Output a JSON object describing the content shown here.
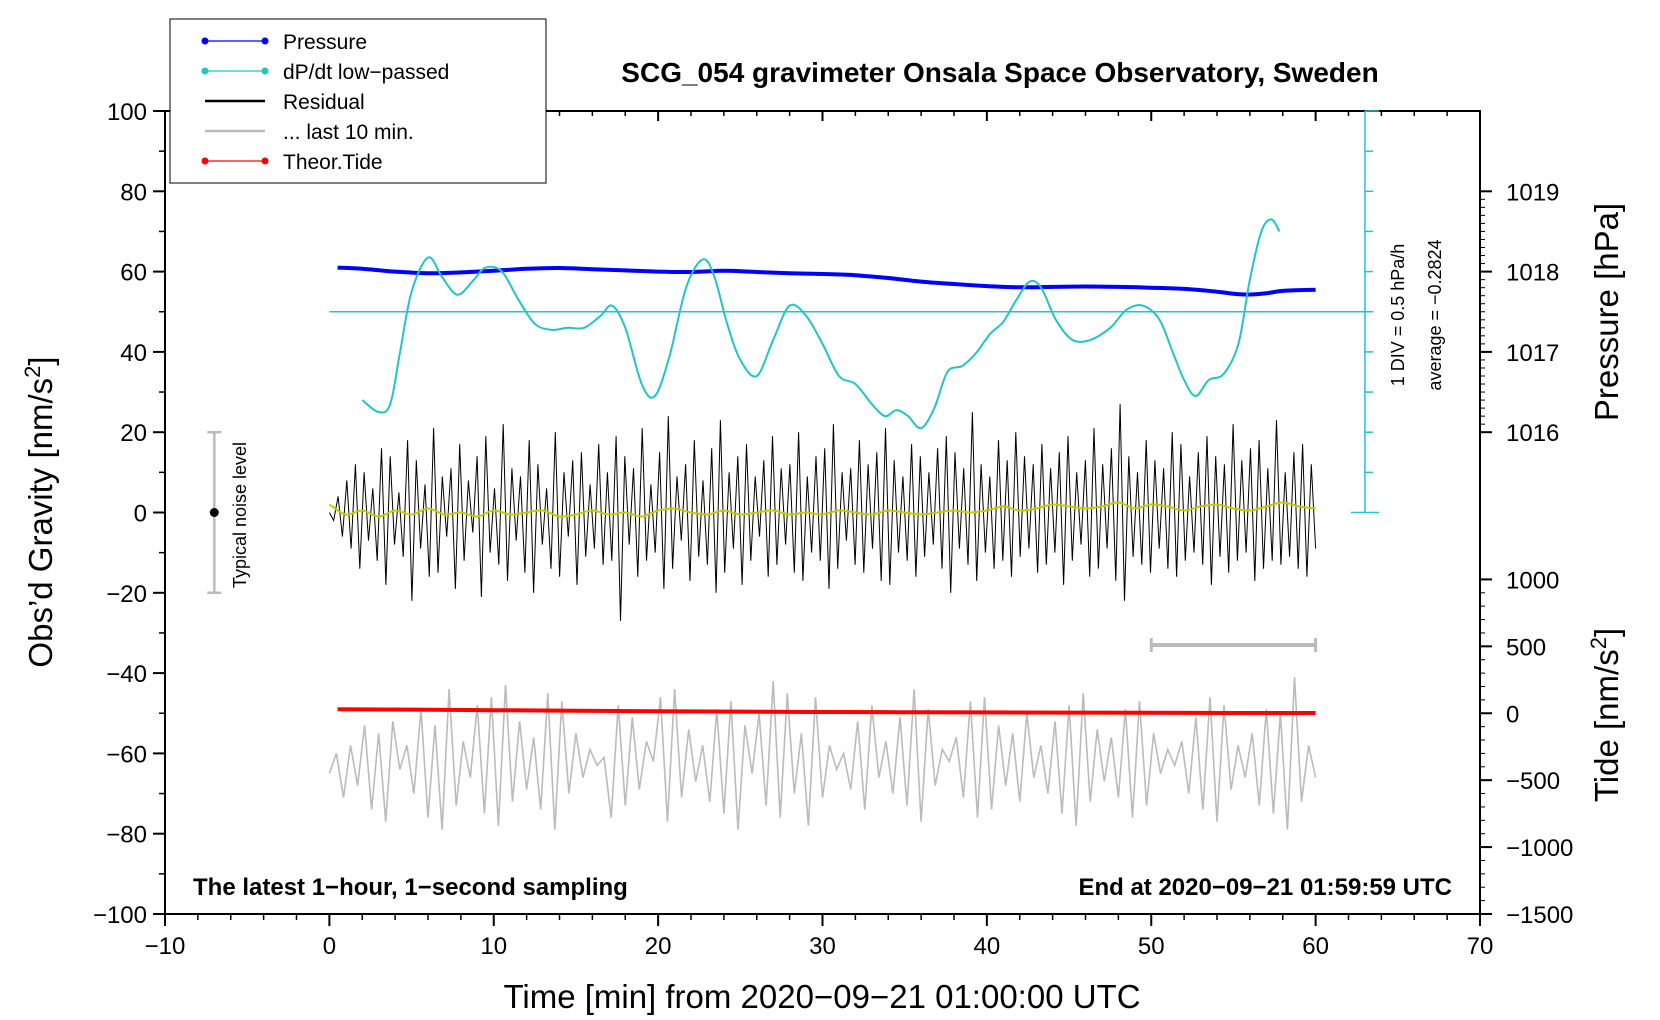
{
  "chart_data": {
    "type": "line",
    "title": "SCG_054 gravimeter Onsala Space Observatory, Sweden",
    "xlabel": "Time [min] from 2020−09−21 01:00:00 UTC",
    "ylabel_left": "Obs’d Gravity [nm/s",
    "ylabel_right_top": "Pressure [hPa]",
    "ylabel_right_bottom": "Tide [nm/s",
    "superscript_2": "2",
    "closing_bracket": "]",
    "xlim": [
      -10,
      70
    ],
    "ylim_left": [
      -100,
      100
    ],
    "x_ticks": [
      -10,
      0,
      10,
      20,
      30,
      40,
      50,
      60,
      70
    ],
    "x_tick_labels": [
      "−10",
      "0",
      "10",
      "20",
      "30",
      "40",
      "50",
      "60",
      "70"
    ],
    "y_ticks_left": [
      -100,
      -80,
      -60,
      -40,
      -20,
      0,
      20,
      40,
      60,
      80,
      100
    ],
    "y_tick_labels_left": [
      "−100",
      "−80",
      "−60",
      "−40",
      "−20",
      "0",
      "20",
      "40",
      "60",
      "80",
      "100"
    ],
    "pressure_axis": {
      "ticks": [
        1016,
        1017,
        1018,
        1019
      ],
      "labels": [
        "1016",
        "1017",
        "1018",
        "1019"
      ],
      "map": {
        "hpa_a": 1016,
        "left_a": 20,
        "hpa_b": 1019,
        "left_b": 80
      }
    },
    "tide_axis": {
      "ticks": [
        1000,
        500,
        0,
        -500,
        -1000,
        -1500
      ],
      "labels": [
        "1000",
        "500",
        "0",
        "−500",
        "−1000",
        "−1500"
      ],
      "map": {
        "tide_a": 0,
        "left_a": -50,
        "tide_b": -1500,
        "left_b": -100
      }
    },
    "legend": {
      "position": "top-left",
      "entries": [
        {
          "label": "Pressure",
          "color": "#0000ff",
          "marker": true
        },
        {
          "label": "dP/dt low−passed",
          "color": "#22c4c8",
          "marker": true
        },
        {
          "label": "Residual",
          "color": "#000000",
          "marker": false
        },
        {
          "label": "... last 10 min.",
          "color": "#bbbbbb",
          "marker": false
        },
        {
          "label": "Theor.Tide",
          "color": "#ff0000",
          "marker": true
        }
      ]
    },
    "noise_bar": {
      "x": -7,
      "y": 0,
      "ymin": -20,
      "ymax": 20,
      "label": "Typical noise level"
    },
    "dpdt_scale": {
      "x": 63,
      "ymin": 0,
      "ymax": 100,
      "baseline": 50,
      "tick_step": 10,
      "label_1": "1 DIV = 0.5 hPa/h",
      "label_2": "average = −0.2824"
    },
    "last10_marker": {
      "x_start": 50,
      "x_end": 60,
      "y": -33
    },
    "series": [
      {
        "name": "Pressure",
        "color": "#0000ff",
        "x": [
          0.5,
          2,
          4,
          6,
          8,
          10,
          12,
          14,
          16,
          18,
          20,
          22,
          24,
          26,
          28,
          30,
          32,
          34,
          36,
          38,
          40,
          42,
          44,
          46,
          48,
          50,
          52,
          54,
          55,
          56,
          57,
          58,
          60
        ],
        "values": [
          61,
          60.7,
          60,
          59.6,
          59.8,
          60.2,
          60.7,
          60.9,
          60.6,
          60.3,
          60.0,
          59.9,
          60.2,
          59.9,
          59.6,
          59.4,
          59.1,
          58.4,
          57.5,
          56.9,
          56.4,
          56.1,
          56.2,
          56.3,
          56.2,
          56.0,
          55.7,
          55.0,
          54.5,
          54.3,
          54.6,
          55.2,
          55.5
        ]
      },
      {
        "name": "dP/dt low−passed",
        "color": "#22c4c8",
        "x": [
          2,
          3,
          3.7,
          4.3,
          5,
          6,
          6.8,
          7.5,
          8,
          8.8,
          9.5,
          10.5,
          11.5,
          12.5,
          13.5,
          14.5,
          15.5,
          16.5,
          17.2,
          18,
          19,
          19.8,
          20.7,
          21.7,
          22.7,
          23.4,
          24.2,
          25,
          26,
          27,
          28,
          29,
          30,
          31,
          32,
          33,
          33.8,
          34.5,
          35.2,
          36,
          36.8,
          37.6,
          38.5,
          39.3,
          40.2,
          41,
          41.8,
          42.6,
          43.3,
          44.2,
          45.2,
          46.3,
          47.5,
          48.5,
          49.5,
          50.5,
          51.3,
          52,
          52.7,
          53.5,
          54.4,
          55.3,
          56,
          56.7,
          57.3,
          57.8
        ],
        "values": [
          28,
          25,
          27,
          40,
          55,
          63.5,
          59,
          55,
          54.5,
          58,
          61,
          60,
          53,
          47,
          45.5,
          46,
          46,
          49,
          51.5,
          46,
          32,
          29,
          39,
          56,
          63,
          59,
          47,
          38,
          34,
          43,
          51.5,
          49,
          42,
          34,
          32,
          27,
          24,
          25.5,
          24,
          21,
          26,
          35,
          36.5,
          39.5,
          44.5,
          47.5,
          53,
          57.5,
          56,
          48,
          43,
          43,
          46,
          50.5,
          51.5,
          48,
          40,
          33,
          29,
          33,
          34.5,
          42,
          58,
          70,
          73,
          70
        ]
      },
      {
        "name": "Residual",
        "color": "#000000",
        "x_range": [
          0,
          60
        ],
        "values": [
          0,
          -2,
          4,
          -6,
          8,
          -9,
          12,
          -14,
          10,
          -7,
          6,
          -12,
          16,
          -18,
          14,
          -8,
          5,
          -11,
          18,
          -22,
          13,
          -9,
          7,
          -16,
          21,
          -15,
          9,
          -6,
          11,
          -19,
          17,
          -12,
          8,
          -5,
          14,
          -21,
          19,
          -10,
          6,
          -13,
          22,
          -17,
          11,
          -7,
          9,
          -15,
          18,
          -20,
          12,
          -8,
          6,
          -14,
          20,
          -16,
          10,
          -6,
          13,
          -18,
          15,
          -11,
          7,
          -9,
          17,
          -13,
          10,
          -12,
          19,
          -27,
          14,
          -8,
          11,
          -16,
          21,
          -12,
          7,
          -10,
          15,
          -19,
          24,
          -14,
          9,
          -7,
          12,
          -17,
          18,
          -11,
          8,
          -13,
          16,
          -20,
          23,
          -15,
          10,
          -9,
          14,
          -18,
          17,
          -12,
          9,
          -6,
          13,
          -16,
          19,
          -13,
          11,
          -8,
          12,
          -15,
          20,
          -17,
          9,
          -10,
          14,
          -12,
          16,
          -19,
          22,
          -14,
          10,
          -7,
          11,
          -13,
          18,
          -15,
          12,
          -9,
          15,
          -17,
          21,
          -18,
          13,
          -10,
          9,
          -12,
          17,
          -16,
          14,
          -11,
          10,
          -8,
          16,
          -14,
          19,
          -20,
          15,
          -9,
          11,
          -13,
          25,
          -17,
          12,
          -10,
          9,
          -14,
          18,
          -12,
          13,
          -16,
          20,
          -11,
          14,
          -9,
          12,
          -15,
          17,
          -13,
          11,
          -10,
          15,
          -18,
          19,
          -12,
          10,
          -8,
          13,
          -16,
          21,
          -14,
          12,
          -9,
          16,
          -17,
          27,
          -22,
          14,
          -11,
          10,
          -13,
          18,
          -15,
          13,
          -9,
          11,
          -14,
          20,
          -16,
          17,
          -12,
          9,
          -10,
          15,
          -13,
          19,
          -18,
          14,
          -11,
          12,
          -15,
          22,
          -12,
          13,
          -10,
          16,
          -17,
          18,
          -14,
          11,
          -12,
          23,
          -13,
          10,
          -11,
          15,
          -14,
          17,
          -16,
          12,
          -9
        ]
      },
      {
        "name": "Residual (smoothed)",
        "color": "#c8c800",
        "x": [
          0,
          1,
          2,
          3,
          4,
          5,
          6,
          7,
          8,
          9,
          10,
          11,
          12,
          13,
          14,
          15,
          16,
          17,
          18,
          19,
          20,
          21,
          22,
          23,
          24,
          25,
          26,
          27,
          28,
          29,
          30,
          31,
          32,
          33,
          34,
          35,
          36,
          37,
          38,
          39,
          40,
          41,
          42,
          43,
          44,
          45,
          46,
          47,
          48,
          49,
          50,
          51,
          52,
          53,
          54,
          55,
          56,
          57,
          58,
          59,
          60
        ],
        "values": [
          2,
          -0.5,
          0.5,
          -1,
          0.5,
          -0.5,
          1,
          -0.5,
          0,
          -1,
          0.5,
          -0.5,
          0,
          0.5,
          -1,
          -0.5,
          0.5,
          -0.5,
          0,
          -1,
          0.5,
          1,
          0,
          -0.5,
          0.5,
          -0.5,
          0,
          0.5,
          -0.5,
          0,
          -0.5,
          0.5,
          0,
          -0.5,
          0.5,
          0,
          -0.5,
          0,
          0.5,
          0,
          0.5,
          1.5,
          0.5,
          1,
          2,
          1.5,
          1,
          1.5,
          2.5,
          1,
          2,
          1.5,
          0.5,
          1.5,
          2,
          1,
          0.5,
          1.5,
          2.5,
          1.5,
          1
        ]
      },
      {
        "name": "... last 10 min.",
        "color": "#bbbbbb",
        "x_range": [
          0,
          60
        ],
        "values": [
          -65,
          -60,
          -71,
          -58,
          -68,
          -53,
          -74,
          -55,
          -77,
          -52,
          -64,
          -58,
          -70,
          -49,
          -76,
          -53,
          -79,
          -44,
          -73,
          -57,
          -66,
          -48,
          -75,
          -46,
          -78,
          -43,
          -72,
          -52,
          -69,
          -56,
          -74,
          -45,
          -79,
          -47,
          -70,
          -55,
          -66,
          -59,
          -63,
          -61,
          -76,
          -48,
          -73,
          -51,
          -69,
          -57,
          -62,
          -46,
          -77,
          -44,
          -71,
          -54,
          -67,
          -58,
          -72,
          -49,
          -75,
          -47,
          -79,
          -53,
          -65,
          -50,
          -73,
          -42,
          -76,
          -45,
          -70,
          -55,
          -78,
          -46,
          -71,
          -58,
          -64,
          -60,
          -69,
          -52,
          -74,
          -48,
          -66,
          -57,
          -70,
          -51,
          -73,
          -44,
          -77,
          -49,
          -68,
          -59,
          -62,
          -56,
          -71,
          -47,
          -76,
          -46,
          -74,
          -53,
          -68,
          -55,
          -72,
          -50,
          -66,
          -58,
          -70,
          -52,
          -75,
          -48,
          -78,
          -45,
          -72,
          -54,
          -67,
          -56,
          -71,
          -49,
          -76,
          -47,
          -73,
          -55,
          -65,
          -59,
          -63,
          -57,
          -70,
          -51,
          -74,
          -46,
          -77,
          -48,
          -69,
          -58,
          -66,
          -55,
          -73,
          -49,
          -75,
          -50,
          -79,
          -41,
          -72,
          -58,
          -66
        ]
      },
      {
        "name": "Theor.Tide",
        "color": "#ff0000",
        "x": [
          0.5,
          5,
          10,
          15,
          20,
          25,
          30,
          35,
          40,
          45,
          50,
          55,
          60
        ],
        "values": [
          -49,
          -49.1,
          -49.25,
          -49.4,
          -49.5,
          -49.6,
          -49.68,
          -49.75,
          -49.8,
          -49.85,
          -49.9,
          -49.93,
          -49.95
        ]
      }
    ]
  },
  "annotations": {
    "left": "The latest 1−hour, 1−second sampling",
    "right": "End at 2020−09−21 01:59:59 UTC"
  }
}
